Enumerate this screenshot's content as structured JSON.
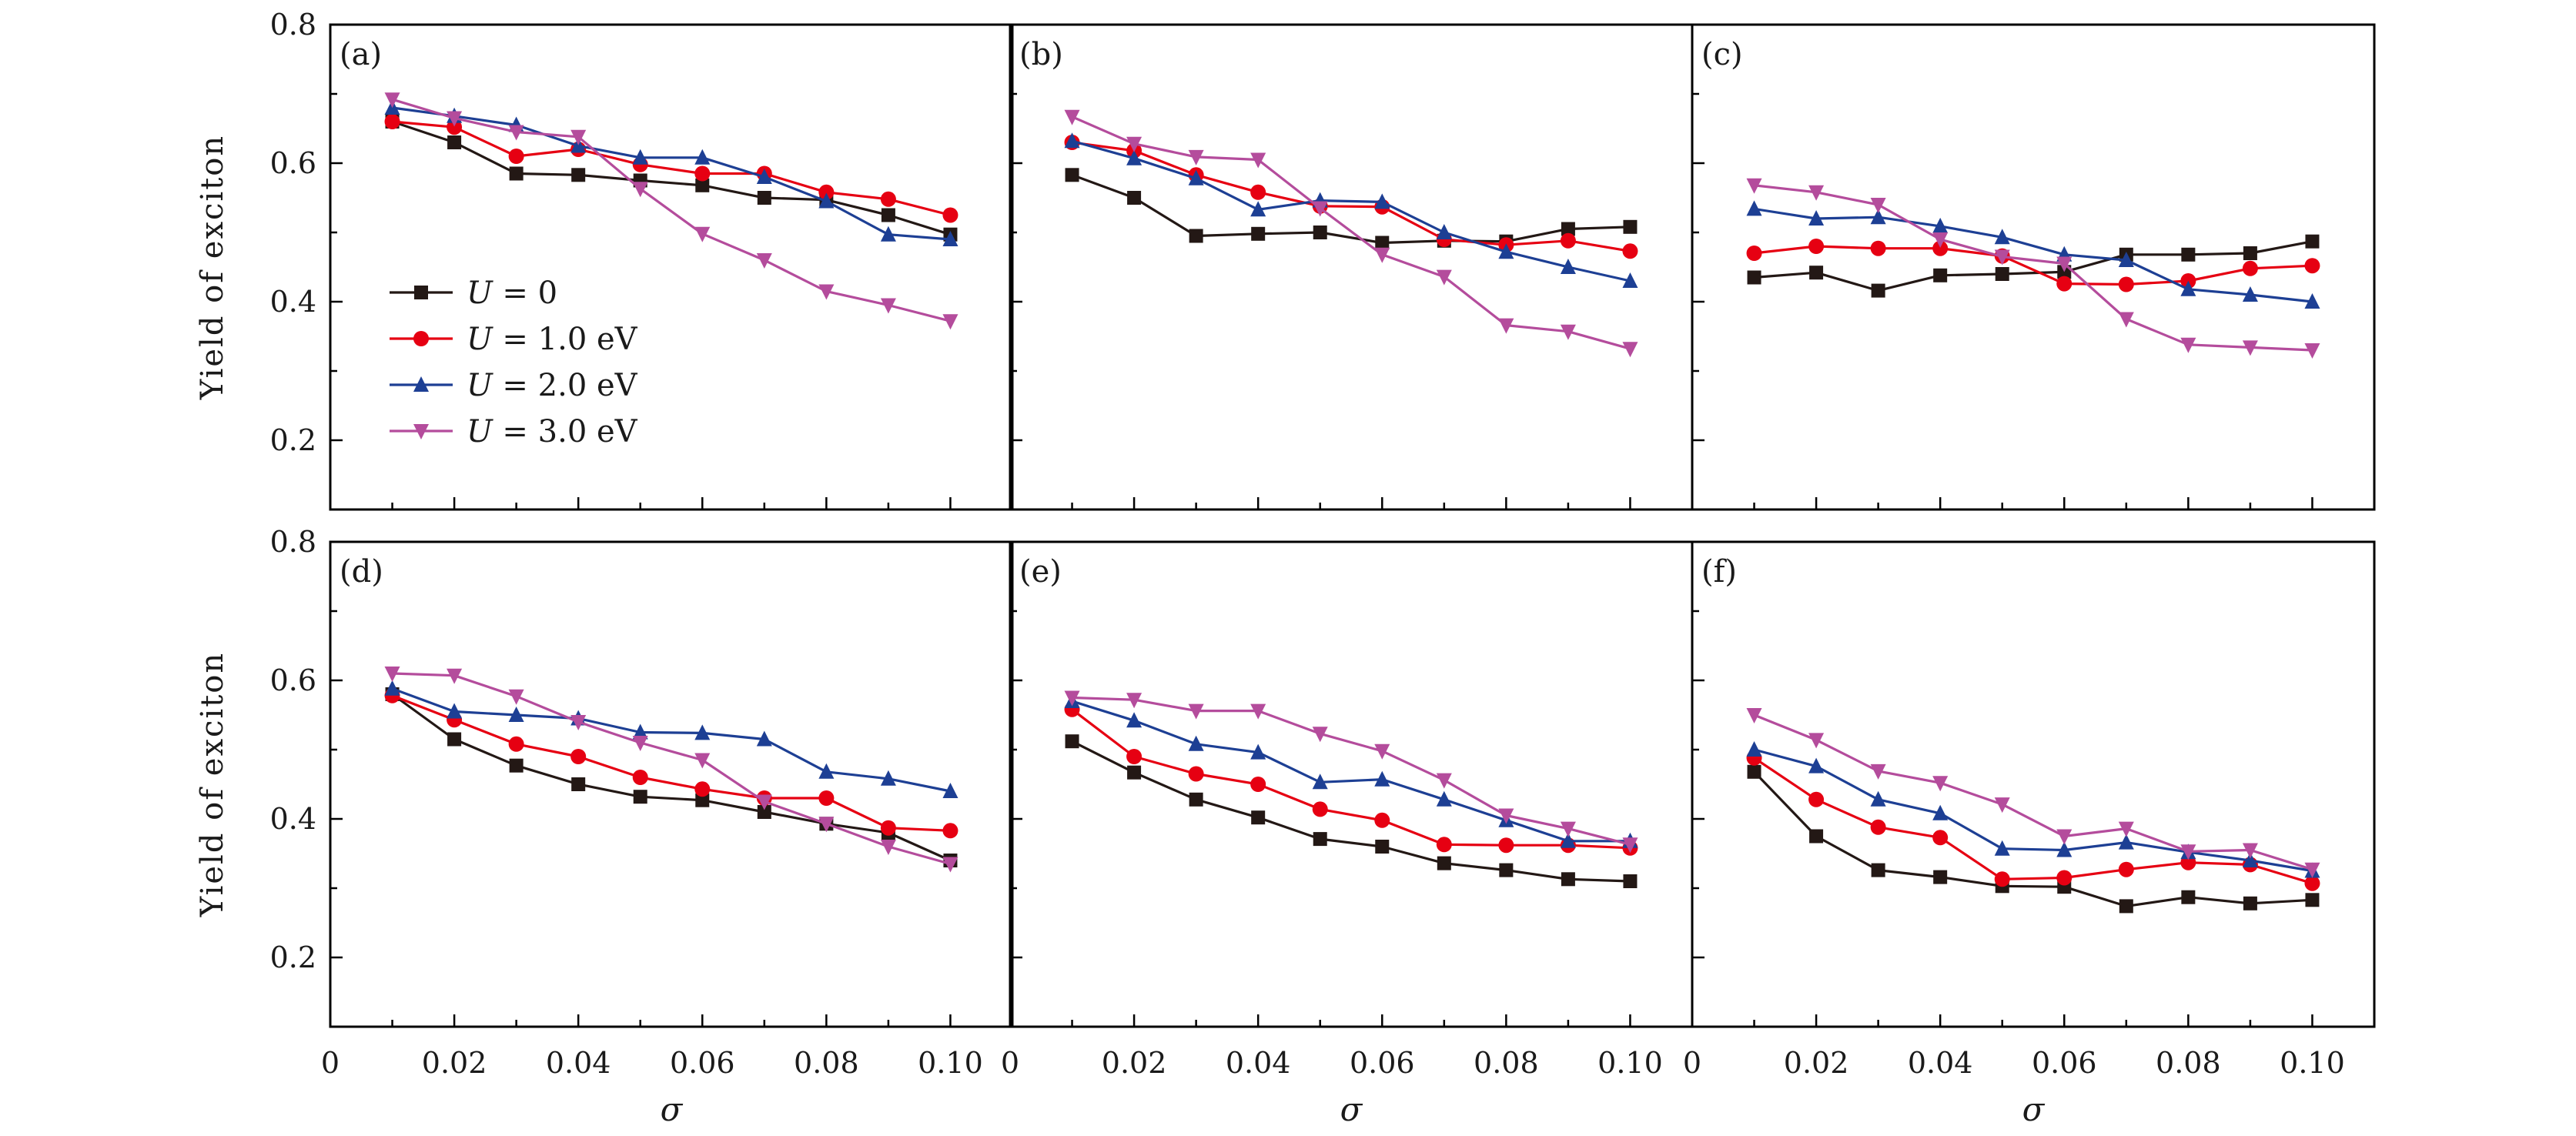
{
  "chart_data": {
    "type": "line",
    "layout_grid": "2 rows x 3 columns",
    "xlabel": "σ",
    "ylabel": "Yield of exciton",
    "xlim": [
      0,
      0.11
    ],
    "ylim": [
      0.1,
      0.8
    ],
    "x": [
      0.01,
      0.02,
      0.03,
      0.04,
      0.05,
      0.06,
      0.07,
      0.08,
      0.09,
      0.1
    ],
    "xtick_labels": [
      "0",
      "0.02",
      "0.04",
      "0.06",
      "0.08",
      "0.10"
    ],
    "xtick_values": [
      0,
      0.02,
      0.04,
      0.06,
      0.08,
      0.1
    ],
    "ytick_labels": [
      "0.2",
      "0.4",
      "0.6",
      "0.8"
    ],
    "ytick_values": [
      0.2,
      0.4,
      0.6,
      0.8
    ],
    "legend": {
      "placement": "panel (a), lower-left",
      "entries": [
        {
          "symbol": "U",
          "text": " = 0",
          "color": "#231815",
          "marker": "square"
        },
        {
          "symbol": "U",
          "text": " = 1.0 eV",
          "color": "#e60012",
          "marker": "circle"
        },
        {
          "symbol": "U",
          "text": " = 2.0 eV",
          "color": "#1d3f94",
          "marker": "triangle-up"
        },
        {
          "symbol": "U",
          "text": " = 3.0 eV",
          "color": "#b44c9c",
          "marker": "triangle-down"
        }
      ]
    },
    "panels": [
      {
        "label": "(a)",
        "series": [
          {
            "name": "U = 0",
            "values": [
              0.66,
              0.63,
              0.585,
              0.583,
              0.575,
              0.568,
              0.55,
              0.547,
              0.525,
              0.497
            ]
          },
          {
            "name": "U = 1.0 eV",
            "values": [
              0.66,
              0.652,
              0.61,
              0.62,
              0.598,
              0.585,
              0.585,
              0.558,
              0.548,
              0.525
            ]
          },
          {
            "name": "U = 2.0 eV",
            "values": [
              0.68,
              0.668,
              0.655,
              0.625,
              0.608,
              0.608,
              0.58,
              0.545,
              0.497,
              0.49
            ]
          },
          {
            "name": "U = 3.0 eV",
            "values": [
              0.692,
              0.665,
              0.645,
              0.638,
              0.563,
              0.498,
              0.46,
              0.415,
              0.395,
              0.372
            ]
          }
        ]
      },
      {
        "label": "(b)",
        "series": [
          {
            "name": "U = 0",
            "values": [
              0.583,
              0.55,
              0.495,
              0.498,
              0.5,
              0.485,
              0.488,
              0.487,
              0.505,
              0.508
            ]
          },
          {
            "name": "U = 1.0 eV",
            "values": [
              0.63,
              0.618,
              0.583,
              0.558,
              0.538,
              0.537,
              0.49,
              0.482,
              0.488,
              0.473
            ]
          },
          {
            "name": "U = 2.0 eV",
            "values": [
              0.632,
              0.607,
              0.578,
              0.533,
              0.546,
              0.544,
              0.5,
              0.472,
              0.45,
              0.43
            ]
          },
          {
            "name": "U = 3.0 eV",
            "values": [
              0.667,
              0.628,
              0.609,
              0.605,
              0.535,
              0.468,
              0.436,
              0.366,
              0.357,
              0.332
            ]
          }
        ]
      },
      {
        "label": "(c)",
        "series": [
          {
            "name": "U = 0",
            "values": [
              0.435,
              0.442,
              0.416,
              0.438,
              0.44,
              0.443,
              0.468,
              0.468,
              0.47,
              0.487
            ]
          },
          {
            "name": "U = 1.0 eV",
            "values": [
              0.47,
              0.48,
              0.477,
              0.477,
              0.466,
              0.426,
              0.425,
              0.43,
              0.448,
              0.452
            ]
          },
          {
            "name": "U = 2.0 eV",
            "values": [
              0.534,
              0.52,
              0.522,
              0.509,
              0.493,
              0.468,
              0.46,
              0.418,
              0.41,
              0.4
            ]
          },
          {
            "name": "U = 3.0 eV",
            "values": [
              0.568,
              0.558,
              0.54,
              0.49,
              0.465,
              0.455,
              0.375,
              0.338,
              0.334,
              0.33
            ]
          }
        ]
      },
      {
        "label": "(d)",
        "series": [
          {
            "name": "U = 0",
            "values": [
              0.58,
              0.515,
              0.477,
              0.45,
              0.432,
              0.427,
              0.41,
              0.393,
              0.38,
              0.34
            ]
          },
          {
            "name": "U = 1.0 eV",
            "values": [
              0.578,
              0.543,
              0.508,
              0.49,
              0.46,
              0.443,
              0.43,
              0.43,
              0.387,
              0.383
            ]
          },
          {
            "name": "U = 2.0 eV",
            "values": [
              0.588,
              0.555,
              0.55,
              0.545,
              0.525,
              0.524,
              0.515,
              0.468,
              0.458,
              0.44
            ]
          },
          {
            "name": "U = 3.0 eV",
            "values": [
              0.61,
              0.607,
              0.577,
              0.54,
              0.51,
              0.485,
              0.425,
              0.393,
              0.36,
              0.335
            ]
          }
        ]
      },
      {
        "label": "(e)",
        "series": [
          {
            "name": "U = 0",
            "values": [
              0.512,
              0.467,
              0.428,
              0.402,
              0.371,
              0.36,
              0.336,
              0.326,
              0.313,
              0.31
            ]
          },
          {
            "name": "U = 1.0 eV",
            "values": [
              0.558,
              0.49,
              0.465,
              0.45,
              0.414,
              0.398,
              0.363,
              0.362,
              0.362,
              0.358
            ]
          },
          {
            "name": "U = 2.0 eV",
            "values": [
              0.57,
              0.542,
              0.508,
              0.496,
              0.453,
              0.457,
              0.428,
              0.398,
              0.368,
              0.368
            ]
          },
          {
            "name": "U = 3.0 eV",
            "values": [
              0.575,
              0.572,
              0.556,
              0.556,
              0.523,
              0.498,
              0.456,
              0.405,
              0.386,
              0.363
            ]
          }
        ]
      },
      {
        "label": "(f)",
        "series": [
          {
            "name": "U = 0",
            "values": [
              0.468,
              0.375,
              0.326,
              0.316,
              0.303,
              0.302,
              0.274,
              0.287,
              0.278,
              0.283
            ]
          },
          {
            "name": "U = 1.0 eV",
            "values": [
              0.488,
              0.428,
              0.388,
              0.373,
              0.313,
              0.315,
              0.327,
              0.337,
              0.334,
              0.307
            ]
          },
          {
            "name": "U = 2.0 eV",
            "values": [
              0.5,
              0.476,
              0.428,
              0.408,
              0.357,
              0.355,
              0.366,
              0.352,
              0.34,
              0.325
            ]
          },
          {
            "name": "U = 3.0 eV",
            "values": [
              0.55,
              0.514,
              0.469,
              0.452,
              0.421,
              0.375,
              0.386,
              0.353,
              0.355,
              0.327
            ]
          }
        ]
      }
    ]
  }
}
